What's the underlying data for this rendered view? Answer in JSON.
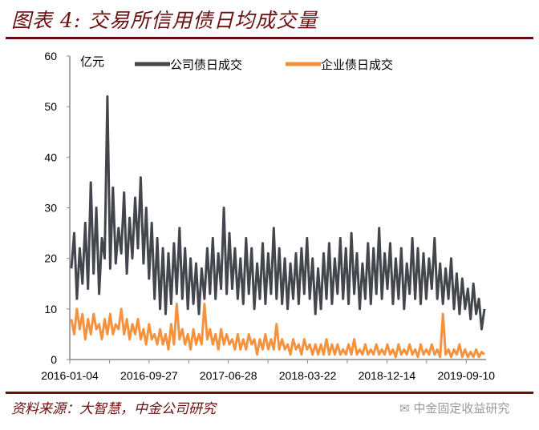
{
  "title": "图表 4: 交易所信用债日均成交量",
  "source": "资料来源：大智慧，中金公司研究",
  "watermark": "中金固定收益研究",
  "chart_data": {
    "type": "line",
    "title": "图表 4: 交易所信用债日均成交量",
    "ylabel": "亿元",
    "ylim": [
      0,
      60
    ],
    "yticks": [
      "0",
      "10",
      "20",
      "30",
      "40",
      "50",
      "60"
    ],
    "xticks": [
      "2016-01-04",
      "2016-09-27",
      "2017-06-28",
      "2018-03-22",
      "2018-12-14",
      "2019-09-10"
    ],
    "grid": false,
    "legend": "top",
    "series": [
      {
        "name": "公司债日成交",
        "color": "#43474d",
        "values": [
          18,
          25,
          12,
          22,
          15,
          27,
          14,
          35,
          17,
          30,
          13,
          24,
          20,
          52,
          18,
          34,
          19,
          26,
          21,
          33,
          17,
          28,
          20,
          32,
          22,
          36,
          19,
          30,
          16,
          27,
          12,
          24,
          10,
          22,
          9,
          21,
          11,
          23,
          13,
          26,
          12,
          22,
          10,
          20,
          11,
          19,
          9,
          18,
          12,
          22,
          13,
          24,
          12,
          21,
          14,
          30,
          13,
          25,
          14,
          22,
          12,
          20,
          11,
          24,
          13,
          22,
          10,
          19,
          12,
          23,
          11,
          21,
          13,
          26,
          12,
          22,
          11,
          20,
          10,
          19,
          12,
          21,
          11,
          22,
          13,
          24,
          12,
          20,
          9,
          18,
          10,
          21,
          12,
          23,
          11,
          20,
          13,
          24,
          12,
          22,
          11,
          25,
          13,
          21,
          10,
          19,
          12,
          23,
          11,
          22,
          13,
          26,
          12,
          21,
          14,
          23,
          11,
          20,
          12,
          22,
          10,
          19,
          13,
          24,
          12,
          22,
          11,
          21,
          12,
          20,
          14,
          24,
          12,
          19,
          11,
          18,
          12,
          20,
          10,
          17,
          9,
          16,
          10,
          14,
          8,
          15,
          9,
          12,
          6,
          10
        ]
      },
      {
        "name": "企业债日成交",
        "color": "#f5923e",
        "values": [
          8,
          5,
          10,
          6,
          9,
          4,
          8,
          5,
          9,
          6,
          7,
          4,
          8,
          5,
          9,
          5,
          7,
          6,
          10,
          5,
          8,
          4,
          7,
          5,
          8,
          4,
          6,
          3,
          7,
          4,
          5,
          3,
          6,
          3,
          5,
          2,
          7,
          3,
          11,
          4,
          6,
          3,
          5,
          2,
          6,
          3,
          5,
          3,
          11,
          4,
          6,
          3,
          5,
          2,
          6,
          3,
          5,
          3,
          4,
          2,
          5,
          2,
          4,
          2,
          5,
          3,
          4,
          1,
          4,
          2,
          5,
          2,
          4,
          2,
          7,
          2,
          4,
          2,
          3,
          1,
          4,
          2,
          3,
          1,
          4,
          2,
          3,
          1,
          3,
          1,
          3,
          1,
          4,
          1,
          3,
          1,
          3,
          1,
          2,
          1,
          3,
          1,
          4,
          1,
          2,
          1,
          3,
          1,
          2,
          1,
          3,
          1,
          2,
          1,
          3,
          1,
          2,
          0.5,
          3,
          1,
          2,
          1,
          3,
          1,
          2,
          0.5,
          3,
          1,
          2,
          1,
          3,
          1,
          2,
          0.5,
          9,
          1,
          2,
          0.5,
          2,
          1,
          3,
          0.5,
          2,
          0.5,
          1.5,
          0.5,
          2,
          0.5,
          1.5,
          1
        ]
      }
    ]
  }
}
